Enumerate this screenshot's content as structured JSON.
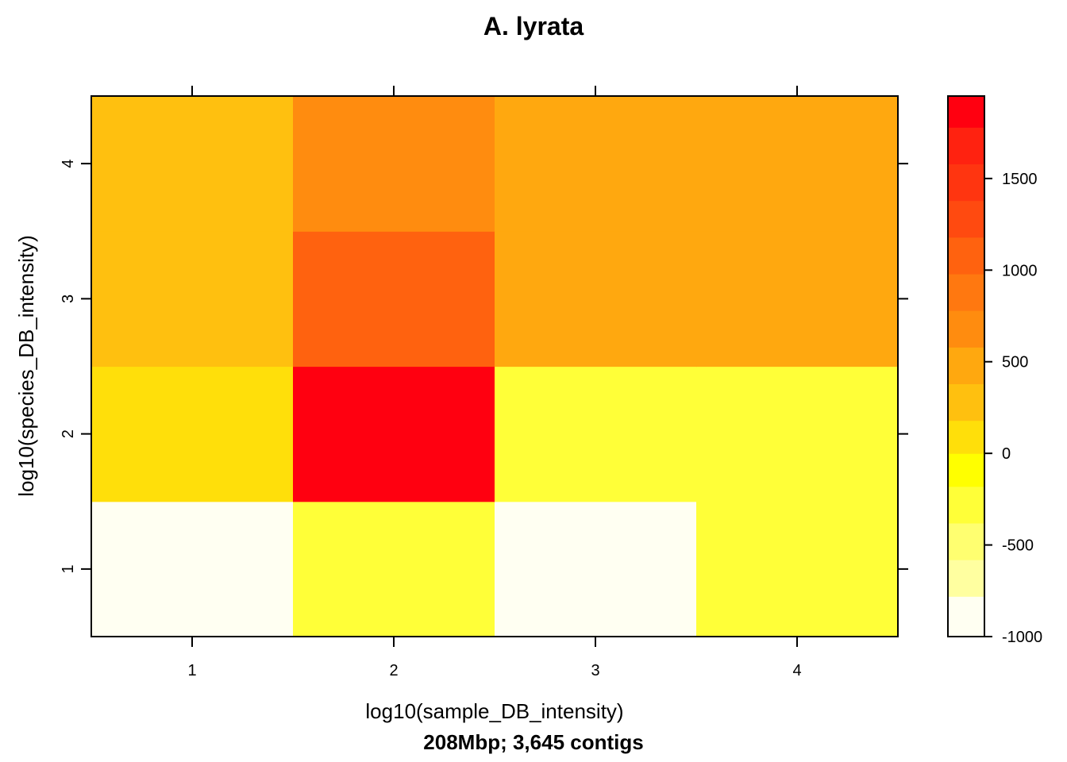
{
  "chart_data": {
    "type": "heatmap",
    "title": "A. lyrata",
    "xlabel": "log10(sample_DB_intensity)",
    "ylabel": "log10(species_DB_intensity)",
    "subtitle": "208Mbp; 3,645 contigs",
    "x_categories": [
      "1",
      "2",
      "3",
      "4"
    ],
    "y_categories": [
      "1",
      "2",
      "3",
      "4"
    ],
    "xlim": [
      0.5,
      4.5
    ],
    "ylim": [
      0.5,
      4.5
    ],
    "values": [
      [
        -1100,
        -350,
        -950,
        -350
      ],
      [
        100,
        1900,
        -300,
        -200
      ],
      [
        300,
        1050,
        400,
        400
      ],
      [
        300,
        650,
        400,
        400
      ]
    ],
    "colorkey": {
      "range": [
        -1000,
        1950
      ],
      "bin_edges": [
        -1000,
        -780,
        -580,
        -380,
        -180,
        0,
        180,
        380,
        580,
        780,
        980,
        1180,
        1380,
        1580,
        1780,
        1950
      ],
      "colors": [
        "#FFFFF2",
        "#FFFFA0",
        "#FFFF70",
        "#FFFF38",
        "#FFFF00",
        "#FFDF0A",
        "#FFC00F",
        "#FFA80F",
        "#FF8C0F",
        "#FF7810",
        "#FF620F",
        "#FF4A10",
        "#FF3510",
        "#FF2210",
        "#FF0010"
      ],
      "ticks": [
        -1000,
        -500,
        0,
        500,
        1000,
        1500
      ],
      "tick_labels": [
        "-1000",
        "-500",
        "0",
        "500",
        "1000",
        "1500"
      ]
    }
  }
}
